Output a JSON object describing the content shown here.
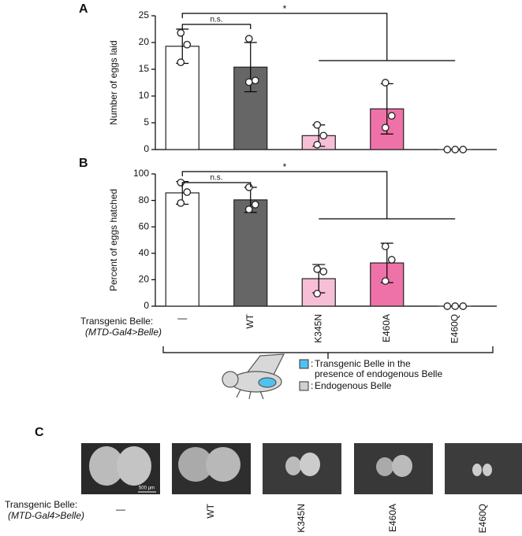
{
  "panel_labels": [
    "A",
    "B",
    "C"
  ],
  "chart_data": [
    {
      "type": "bar",
      "ylabel": "Number of eggs laid",
      "values": [
        19.3,
        15.4,
        2.6,
        7.6,
        0
      ],
      "errors": [
        3.2,
        4.6,
        2.0,
        4.7,
        0
      ],
      "points": [
        [
          21.8,
          19.6,
          16.3
        ],
        [
          20.7,
          12.9,
          12.6
        ],
        [
          4.6,
          2.6,
          0.9
        ],
        [
          12.5,
          6.3,
          4.1
        ],
        [
          0,
          0,
          0
        ]
      ],
      "colors": [
        "#ffffff",
        "#666666",
        "#f7bfd6",
        "#ee72a7",
        "#ffffff"
      ],
      "ylim": [
        0,
        25
      ],
      "yticks": [
        0,
        5,
        10,
        15,
        20,
        25
      ],
      "annotations": [
        "n.s.",
        "*"
      ]
    },
    {
      "type": "bar",
      "ylabel": "Percent of eggs hatched",
      "categories": [
        "—",
        "WT",
        "K345N",
        "E460A",
        "E460Q"
      ],
      "values": [
        85.7,
        80.4,
        20.8,
        32.7,
        0
      ],
      "errors": [
        8.6,
        9.5,
        10.7,
        14.9,
        0
      ],
      "points": [
        [
          93.5,
          86.3,
          78.0
        ],
        [
          89.9,
          76.8,
          73.2
        ],
        [
          28.0,
          26.2,
          9.5
        ],
        [
          45.2,
          35.1,
          19.0
        ],
        [
          0,
          0,
          0
        ]
      ],
      "colors": [
        "#ffffff",
        "#666666",
        "#f7bfd6",
        "#ee72a7",
        "#ffffff"
      ],
      "ylim": [
        0,
        100
      ],
      "yticks": [
        0,
        20,
        40,
        60,
        80,
        100
      ],
      "annotations": [
        "n.s.",
        "*"
      ]
    }
  ],
  "genotype_label": [
    "Transgenic Belle:",
    "(MTD-Gal4>Belle)"
  ],
  "legend": [
    "Transgenic Belle in the",
    "presence of endogenous Belle",
    "Endogenous Belle"
  ],
  "legend_prefix": ":",
  "panel_c": {
    "labels": [
      "—",
      "WT",
      "K345N",
      "E460A",
      "E460Q"
    ],
    "scale_bar": "500 µm",
    "genotype_label": [
      "Transgenic Belle:",
      "(MTD-Gal4>Belle)"
    ]
  }
}
